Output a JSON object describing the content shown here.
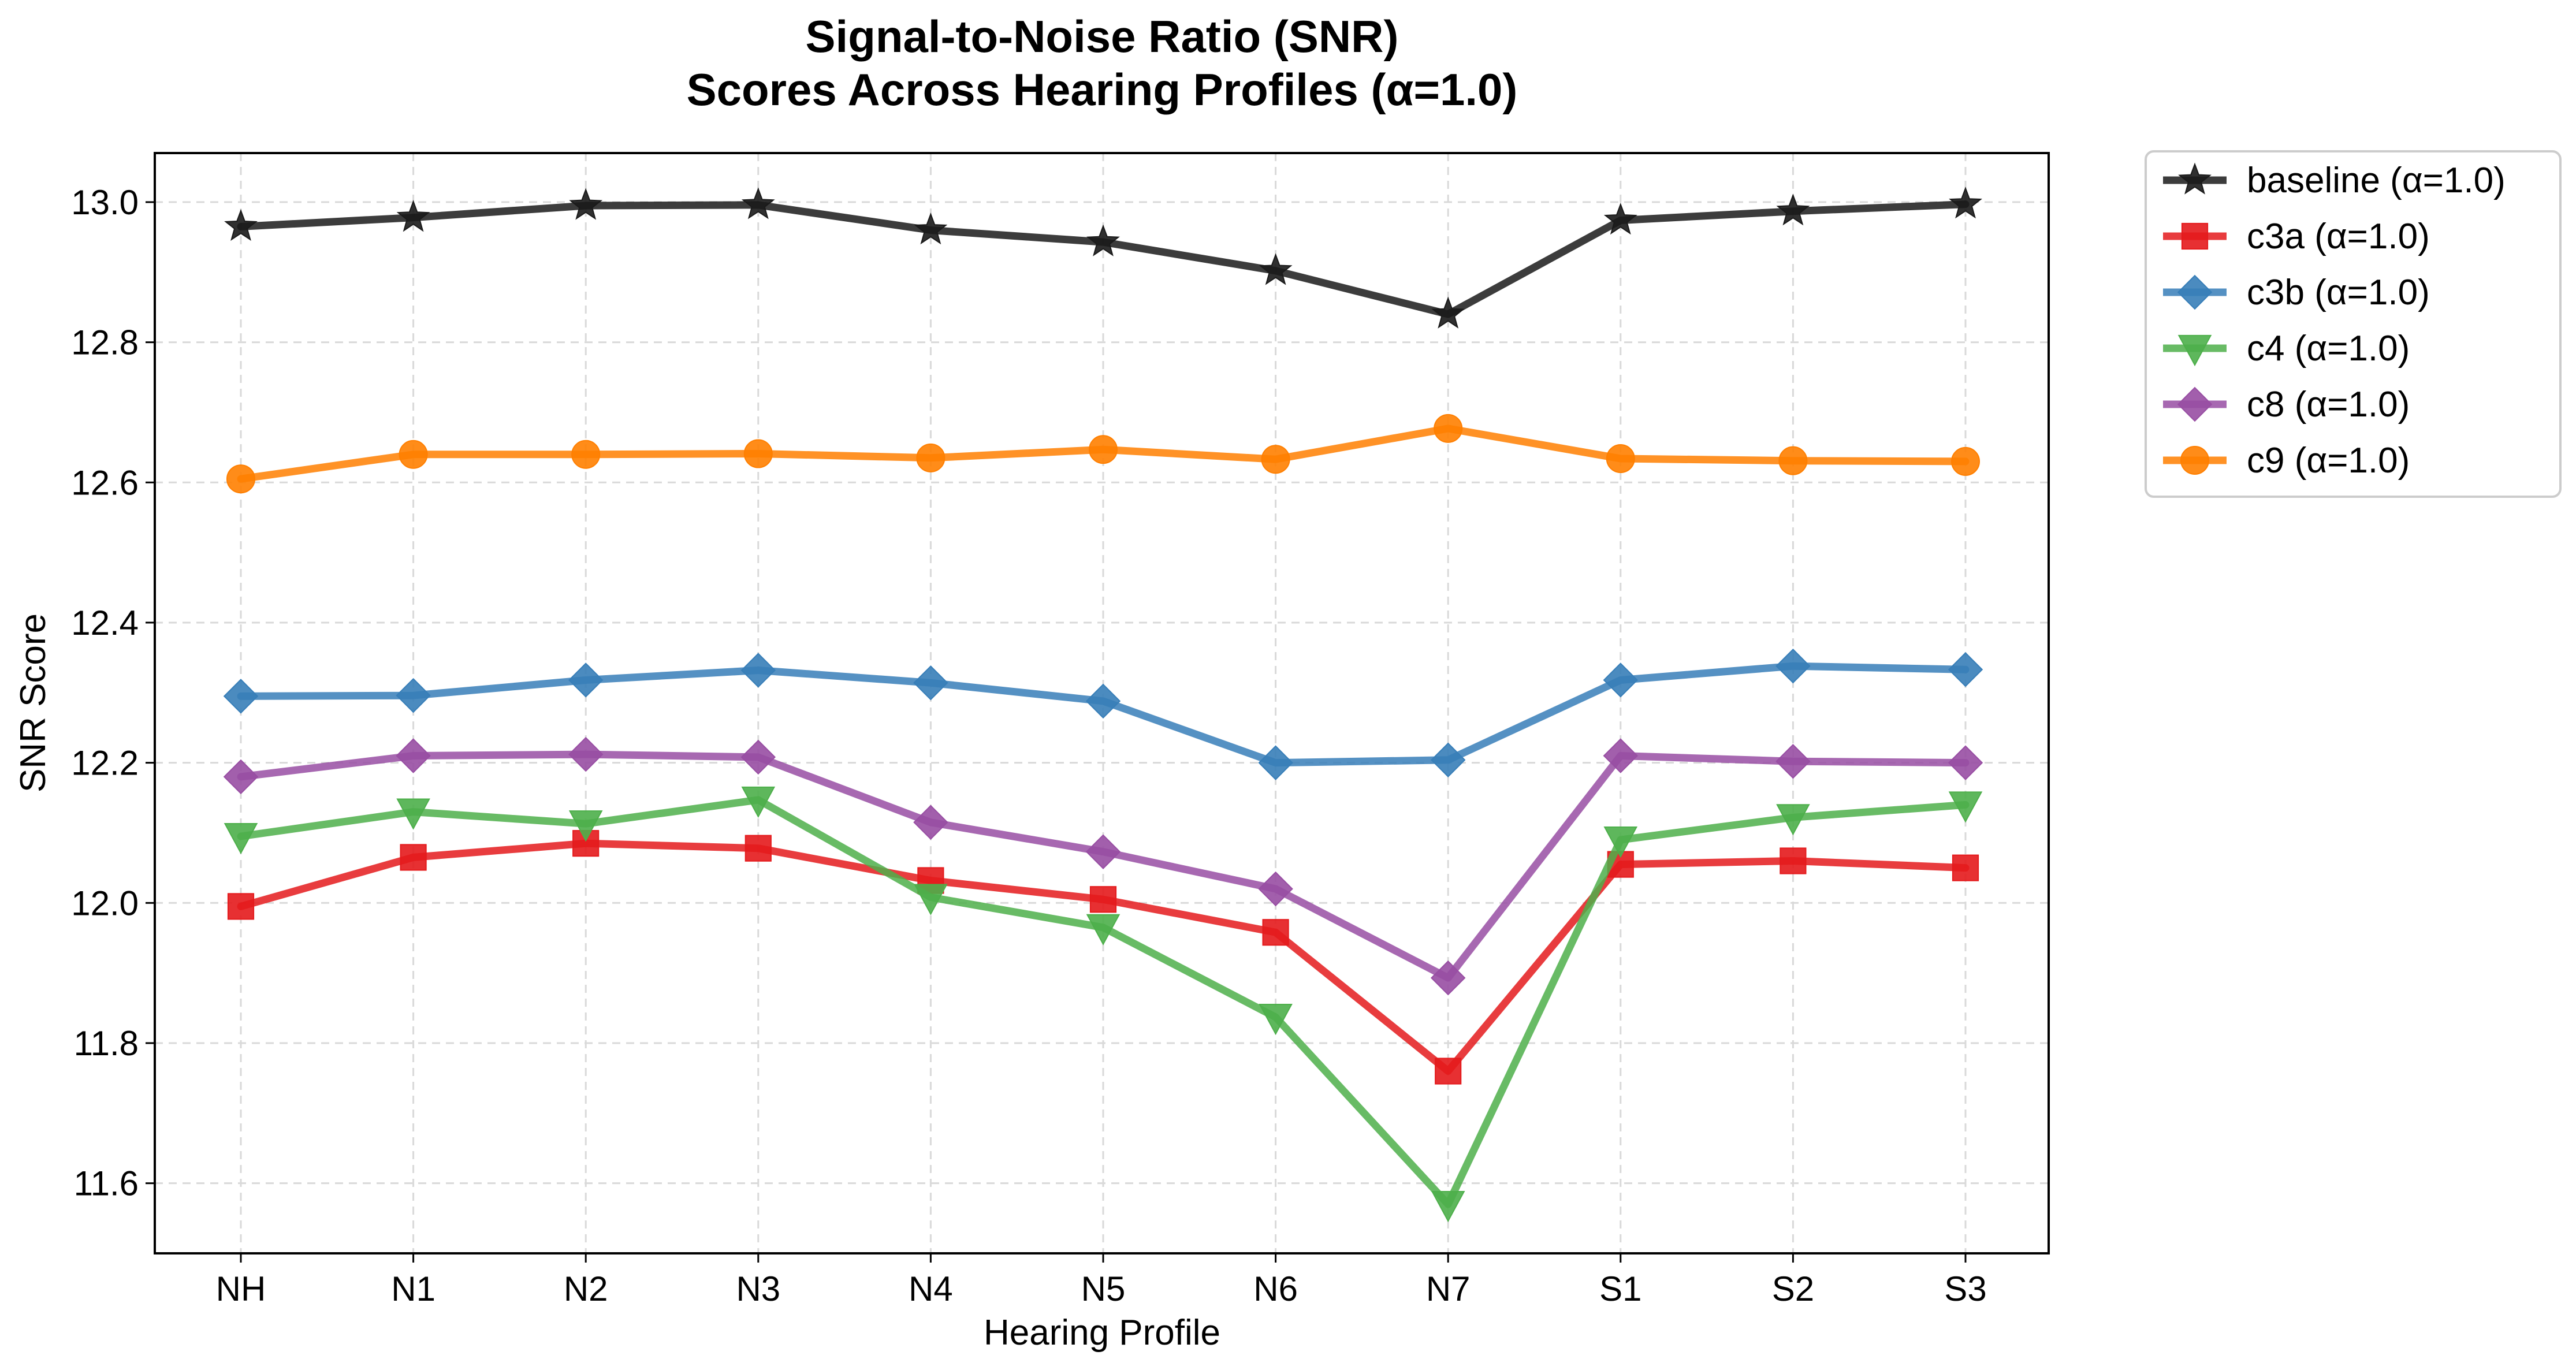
{
  "chart_data": {
    "type": "line",
    "title": [
      "Signal-to-Noise Ratio (SNR)",
      "Scores Across Hearing Profiles (α=1.0)"
    ],
    "xlabel": "Hearing Profile",
    "ylabel": "SNR Score",
    "categories": [
      "NH",
      "N1",
      "N2",
      "N3",
      "N4",
      "N5",
      "N6",
      "N7",
      "S1",
      "S2",
      "S3"
    ],
    "ylim": [
      11.5,
      13.07
    ],
    "yticks": [
      11.6,
      11.8,
      12.0,
      12.2,
      12.4,
      12.6,
      12.8,
      13.0
    ],
    "ytick_labels": [
      "11.6",
      "11.8",
      "12.0",
      "12.2",
      "12.4",
      "12.6",
      "12.8",
      "13.0"
    ],
    "grid": true,
    "legend_position": "outside-top-right",
    "series": [
      {
        "name": "baseline (α=1.0)",
        "color": "#1a1a1a",
        "marker": "star",
        "values": [
          12.965,
          12.978,
          12.995,
          12.996,
          12.96,
          12.943,
          12.902,
          12.84,
          12.974,
          12.987,
          12.997
        ]
      },
      {
        "name": "c3a (α=1.0)",
        "color": "#e41a1c",
        "marker": "square",
        "values": [
          11.995,
          12.065,
          12.085,
          12.078,
          12.032,
          12.005,
          11.958,
          11.76,
          12.055,
          12.06,
          12.05
        ]
      },
      {
        "name": "c3b (α=1.0)",
        "color": "#377eb8",
        "marker": "diamond",
        "values": [
          12.295,
          12.296,
          12.318,
          12.332,
          12.314,
          12.288,
          12.2,
          12.204,
          12.318,
          12.338,
          12.333
        ]
      },
      {
        "name": "c4 (α=1.0)",
        "color": "#4daf4a",
        "marker": "triangle-down",
        "values": [
          12.095,
          12.13,
          12.113,
          12.147,
          12.008,
          11.965,
          11.837,
          11.57,
          12.09,
          12.122,
          12.14
        ]
      },
      {
        "name": "c8 (α=1.0)",
        "color": "#984ea3",
        "marker": "diamond",
        "values": [
          12.18,
          12.21,
          12.212,
          12.208,
          12.115,
          12.073,
          12.02,
          11.893,
          12.21,
          12.202,
          12.2
        ]
      },
      {
        "name": "c9 (α=1.0)",
        "color": "#ff7f00",
        "marker": "circle",
        "values": [
          12.605,
          12.64,
          12.64,
          12.641,
          12.635,
          12.647,
          12.633,
          12.677,
          12.634,
          12.631,
          12.63
        ]
      }
    ]
  }
}
